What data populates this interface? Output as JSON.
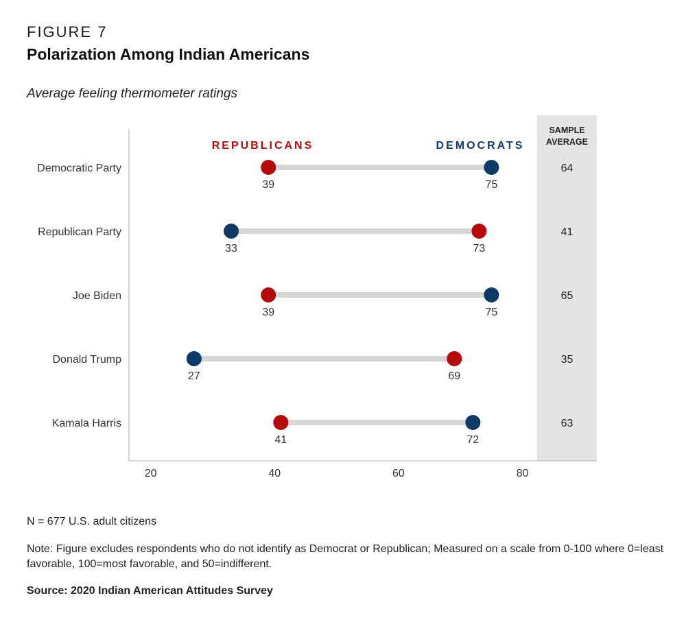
{
  "figure_label": "FIGURE 7",
  "title": "Polarization Among Indian Americans",
  "subtitle": "Average feeling thermometer ratings",
  "n_note": "N = 677 U.S. adult citizens",
  "note": "Note: Figure excludes respondents who do not identify as Democrat or Republican; Measured on a scale from 0-100 where 0=least favorable, 100=most favorable, and 50=indifferent.",
  "source": "Source: 2020 Indian American Attitudes Survey",
  "colors": {
    "republicans": "#b40a0a",
    "democrats": "#0d3a66",
    "connector": "#d6d6d6",
    "panel": "#e4e4e6"
  },
  "chart_data": {
    "type": "dumbbell",
    "categories": [
      "Democratic Party",
      "Republican Party",
      "Joe Biden",
      "Donald Trump",
      "Kamala Harris"
    ],
    "series": [
      {
        "name": "REPUBLICANS",
        "values": [
          39,
          73,
          39,
          69,
          41
        ]
      },
      {
        "name": "DEMOCRATS",
        "values": [
          75,
          33,
          75,
          27,
          72
        ]
      }
    ],
    "sample_average": {
      "header": [
        "SAMPLE",
        "AVERAGE"
      ],
      "values": [
        64,
        41,
        65,
        35,
        63
      ]
    },
    "xticks": [
      20,
      40,
      60,
      80
    ],
    "xlim": [
      16.5,
      92
    ],
    "grid": false
  }
}
